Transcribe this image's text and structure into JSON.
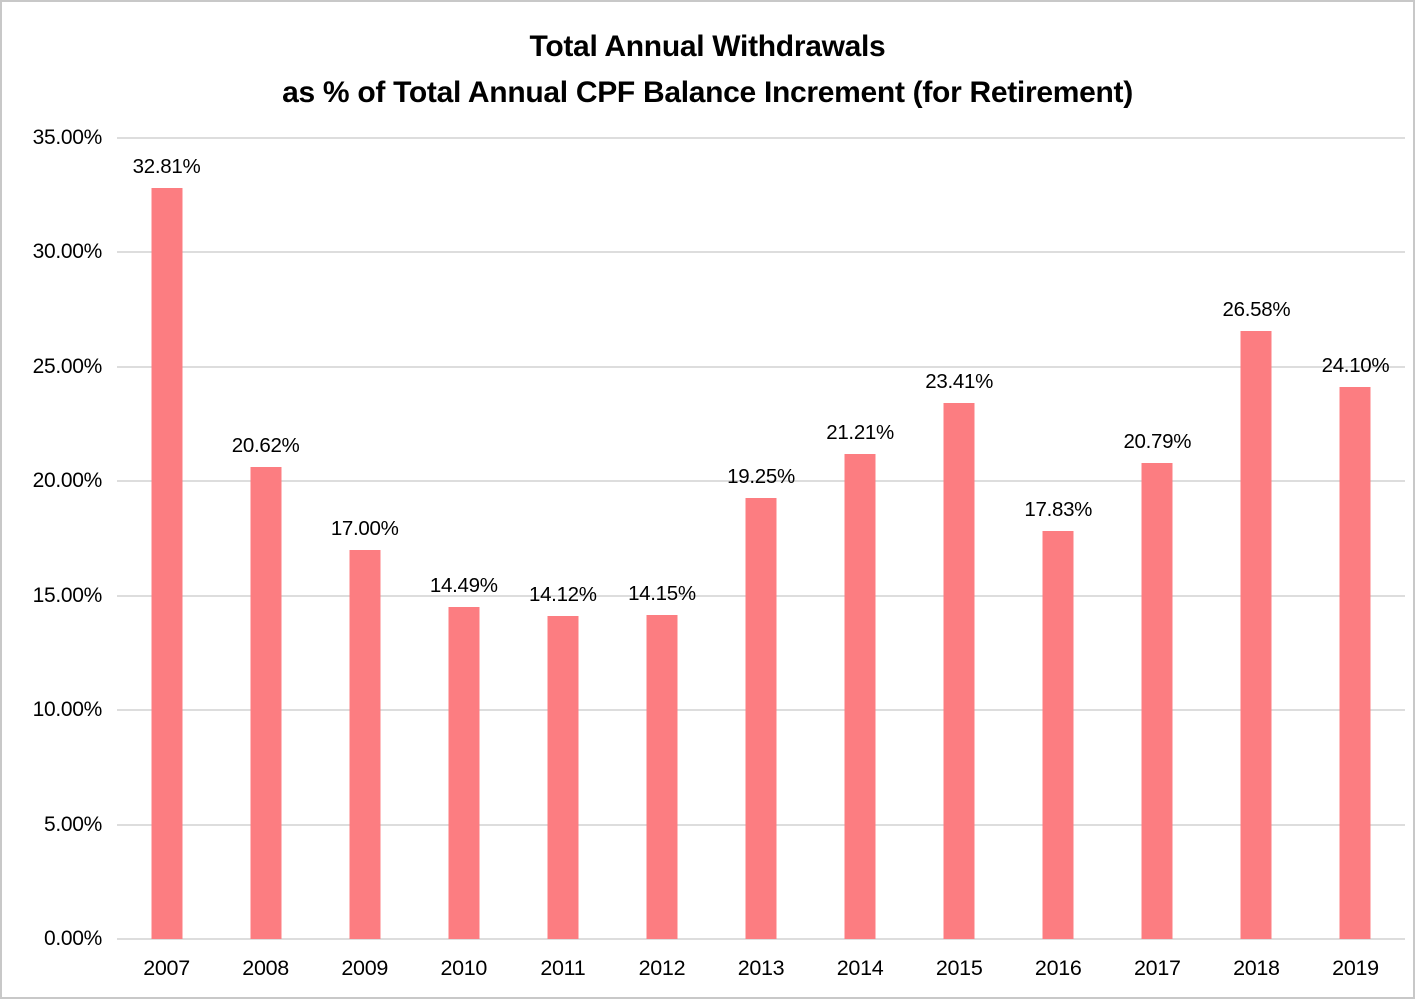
{
  "page": {
    "title_line1": "Total Annual Withdrawals",
    "title_line2": "as % of Total Annual CPF Balance Increment (for Retirement)"
  },
  "chart_data": {
    "type": "bar",
    "title": "Total Annual Withdrawals as % of Total Annual CPF Balance Increment (for Retirement)",
    "categories": [
      "2007",
      "2008",
      "2009",
      "2010",
      "2011",
      "2012",
      "2013",
      "2014",
      "2015",
      "2016",
      "2017",
      "2018",
      "2019"
    ],
    "values": [
      32.81,
      20.62,
      17.0,
      14.49,
      14.12,
      14.15,
      19.25,
      21.21,
      23.41,
      17.83,
      20.79,
      26.58,
      24.1
    ],
    "value_labels": [
      "32.81%",
      "20.62%",
      "17.00%",
      "14.49%",
      "14.12%",
      "14.15%",
      "19.25%",
      "21.21%",
      "23.41%",
      "17.83%",
      "20.79%",
      "26.58%",
      "24.10%"
    ],
    "xlabel": "",
    "ylabel": "",
    "ylim": [
      0,
      35
    ],
    "ytick_step": 5,
    "ytick_labels": [
      "0.00%",
      "5.00%",
      "10.00%",
      "15.00%",
      "20.00%",
      "25.00%",
      "30.00%",
      "35.00%"
    ],
    "grid": true,
    "legend": "none",
    "bar_color": "#fc7d81",
    "gridline_color": "#dddddd",
    "text_color": "#000000"
  }
}
